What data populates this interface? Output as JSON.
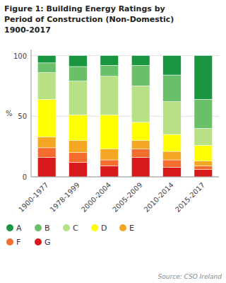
{
  "chart_data": {
    "type": "bar",
    "stacked": true,
    "title": "Figure 1: Building Energy Ratings by\nPeriod of Construction (Non-Domestic)\n1900-2017",
    "y_label": "%",
    "categories": [
      "1900-1977",
      "1978-1999",
      "2000-2004",
      "2005-2009",
      "2010-2014",
      "2015-2017"
    ],
    "series": [
      {
        "name": "G",
        "color": "#d7191c",
        "values": [
          16,
          12,
          9,
          16,
          8,
          6
        ]
      },
      {
        "name": "F",
        "color": "#f46d2e",
        "values": [
          8,
          8,
          5,
          7,
          6,
          3
        ]
      },
      {
        "name": "E",
        "color": "#f4a722",
        "values": [
          9,
          10,
          9,
          7,
          7,
          4
        ]
      },
      {
        "name": "D",
        "color": "#ffff00",
        "values": [
          31,
          21,
          28,
          15,
          14,
          13
        ]
      },
      {
        "name": "C",
        "color": "#b8e186",
        "values": [
          22,
          28,
          32,
          30,
          27,
          14
        ]
      },
      {
        "name": "B",
        "color": "#6abf69",
        "values": [
          8,
          12,
          9,
          17,
          22,
          24
        ]
      },
      {
        "name": "A",
        "color": "#1a9641",
        "values": [
          6,
          9,
          8,
          8,
          16,
          36
        ]
      }
    ],
    "ylim": [
      0,
      105
    ],
    "yticks": [
      0,
      50,
      100
    ],
    "grid": true,
    "legend": "bottom",
    "annotations": [
      "Source: CSO Ireland"
    ]
  }
}
